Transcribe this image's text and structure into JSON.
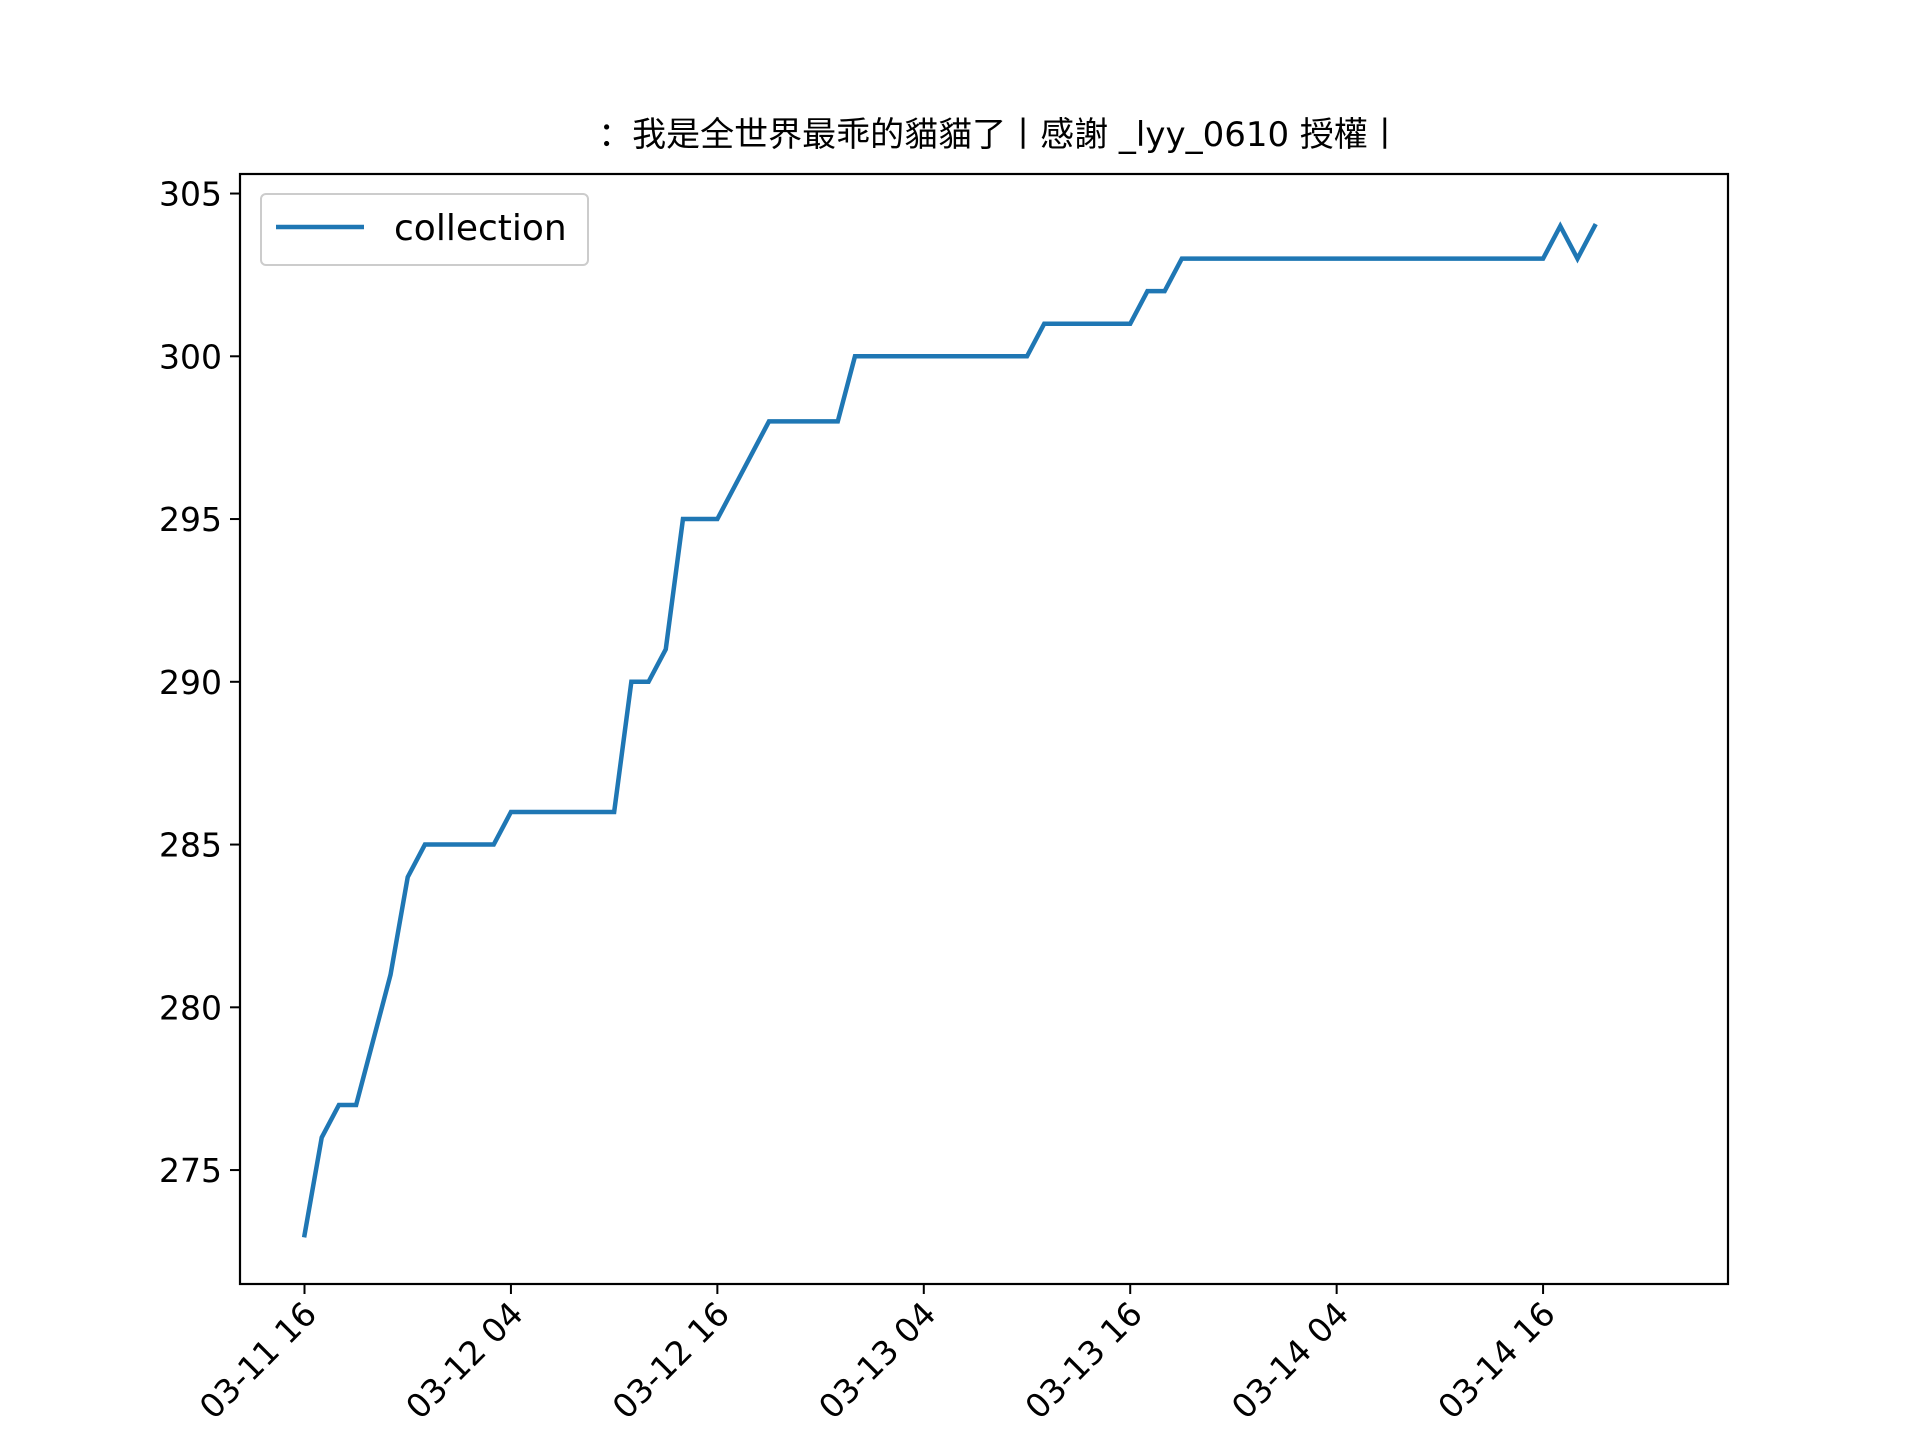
{
  "chart_data": {
    "type": "line",
    "title": "：我是全世界最乖的貓貓了丨感謝 _lyy_0610 授權丨",
    "xlabel": "",
    "ylabel": "",
    "x_tick_labels": [
      "03-11 16",
      "03-12 04",
      "03-12 16",
      "03-13 04",
      "03-13 16",
      "03-14 04",
      "03-14 16"
    ],
    "y_tick_labels": [
      "275",
      "280",
      "285",
      "290",
      "295",
      "300",
      "305"
    ],
    "y_ticks": [
      275,
      280,
      285,
      290,
      295,
      300,
      305
    ],
    "xlim": [
      "03-11 12:15",
      "03-15 02:45"
    ],
    "ylim": [
      271.5,
      305.6
    ],
    "legend_position": "upper left",
    "grid": false,
    "series": [
      {
        "name": "collection",
        "color": "#1f77b4",
        "x": [
          "03-11 16:00",
          "03-11 17:00",
          "03-11 18:00",
          "03-11 19:00",
          "03-11 20:00",
          "03-11 21:00",
          "03-11 22:00",
          "03-11 23:00",
          "03-12 00:00",
          "03-12 01:00",
          "03-12 02:00",
          "03-12 03:00",
          "03-12 04:00",
          "03-12 05:00",
          "03-12 06:00",
          "03-12 07:00",
          "03-12 08:00",
          "03-12 09:00",
          "03-12 10:00",
          "03-12 11:00",
          "03-12 12:00",
          "03-12 13:00",
          "03-12 14:00",
          "03-12 15:00",
          "03-12 16:00",
          "03-12 17:00",
          "03-12 18:00",
          "03-12 19:00",
          "03-12 20:00",
          "03-12 21:00",
          "03-12 22:00",
          "03-12 23:00",
          "03-13 00:00",
          "03-13 01:00",
          "03-13 02:00",
          "03-13 03:00",
          "03-13 04:00",
          "03-13 05:00",
          "03-13 06:00",
          "03-13 07:00",
          "03-13 08:00",
          "03-13 09:00",
          "03-13 10:00",
          "03-13 11:00",
          "03-13 12:00",
          "03-13 13:00",
          "03-13 14:00",
          "03-13 15:00",
          "03-13 16:00",
          "03-13 17:00",
          "03-13 18:00",
          "03-13 19:00",
          "03-13 20:00",
          "03-13 21:00",
          "03-13 22:00",
          "03-13 23:00",
          "03-14 00:00",
          "03-14 01:00",
          "03-14 02:00",
          "03-14 03:00",
          "03-14 04:00",
          "03-14 05:00",
          "03-14 06:00",
          "03-14 07:00",
          "03-14 08:00",
          "03-14 09:00",
          "03-14 10:00",
          "03-14 11:00",
          "03-14 12:00",
          "03-14 13:00",
          "03-14 14:00",
          "03-14 15:00",
          "03-14 16:00",
          "03-14 17:00",
          "03-14 18:00",
          "03-14 19:00"
        ],
        "values": [
          273,
          276,
          277,
          277,
          279,
          281,
          284,
          285,
          285,
          285,
          285,
          285,
          286,
          286,
          286,
          286,
          286,
          286,
          286,
          290,
          290,
          291,
          295,
          295,
          295,
          296,
          297,
          298,
          298,
          298,
          298,
          298,
          300,
          300,
          300,
          300,
          300,
          300,
          300,
          300,
          300,
          300,
          300,
          301,
          301,
          301,
          301,
          301,
          301,
          302,
          302,
          303,
          303,
          303,
          303,
          303,
          303,
          303,
          303,
          303,
          303,
          303,
          303,
          303,
          303,
          303,
          303,
          303,
          303,
          303,
          303,
          303,
          303,
          304,
          303,
          304
        ]
      }
    ]
  }
}
